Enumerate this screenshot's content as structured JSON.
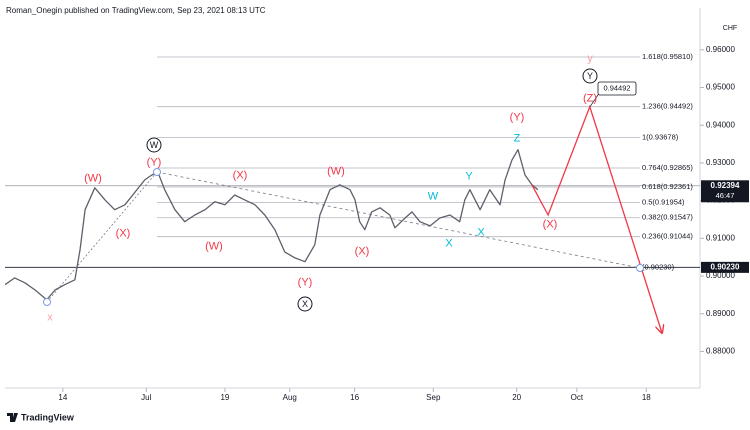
{
  "header": {
    "text": "Roman_Onegin published on TradingView.com, Sep 23, 2021 08:13 UTC"
  },
  "footer": {
    "brand": "TradingView"
  },
  "chart_data": {
    "type": "line",
    "currency": "CHF",
    "x": [
      0.5,
      2.6,
      4.8,
      7.0,
      9.5,
      11.3,
      13.4,
      15.6,
      16.7,
      17.8,
      19.9,
      22.1,
      24.2,
      26.4,
      28.6,
      30.7,
      32.2,
      33.5,
      35.0,
      37.2,
      39.3,
      41.5,
      43.7,
      45.8,
      48.0,
      50.1,
      52.3,
      54.5,
      56.6,
      58.8,
      60.9,
      63.1,
      65.3,
      67.4,
      68.5,
      70.7,
      72.8,
      75.0,
      76.1,
      77.1,
      78.2,
      79.7,
      81.5,
      83.6,
      84.7,
      86.9,
      88.4,
      90.1,
      92.3,
      94.4,
      96.6,
      98.7,
      99.8,
      100.9,
      103.1,
      105.2,
      107.4,
      108.5,
      110.0,
      111.3,
      112.8,
      114.3,
      115.6
    ],
    "series": [
      {
        "color": "#5d606b",
        "values": [
          0.8977,
          0.8995,
          0.8982,
          0.8963,
          0.8937,
          0.8963,
          0.8977,
          0.899,
          0.9069,
          0.9176,
          0.9234,
          0.9202,
          0.9176,
          0.9189,
          0.9223,
          0.9255,
          0.9268,
          0.9276,
          0.9229,
          0.9176,
          0.9144,
          0.9162,
          0.9176,
          0.9197,
          0.9189,
          0.9215,
          0.9202,
          0.9189,
          0.9162,
          0.9123,
          0.9064,
          0.9048,
          0.9038,
          0.9083,
          0.9162,
          0.9229,
          0.9242,
          0.9229,
          0.9202,
          0.9144,
          0.9123,
          0.917,
          0.9181,
          0.9162,
          0.9128,
          0.9154,
          0.917,
          0.9144,
          0.9133,
          0.9154,
          0.9162,
          0.9144,
          0.9202,
          0.9229,
          0.9176,
          0.9229,
          0.9189,
          0.9255,
          0.9308,
          0.9335,
          0.9268,
          0.9242,
          0.9229
        ]
      }
    ],
    "projection": {
      "color": "#f23645",
      "x": [
        114.3,
        117.8,
        126.8,
        142.4
      ],
      "values": [
        0.9242,
        0.9162,
        0.94492,
        0.8849
      ]
    },
    "xlim": [
      0.5,
      150.6
    ],
    "xticks": [
      {
        "value": 13,
        "label": "14"
      },
      {
        "value": 31,
        "label": "Jul"
      },
      {
        "value": 48,
        "label": "19"
      },
      {
        "value": 62,
        "label": "Aug"
      },
      {
        "value": 76,
        "label": "16"
      },
      {
        "value": 93,
        "label": "Sep"
      },
      {
        "value": 111,
        "label": "20"
      },
      {
        "value": 124,
        "label": "Oct"
      },
      {
        "value": 139,
        "label": "18"
      }
    ],
    "ylim": [
      0.8703,
      0.9711
    ],
    "yticks": [
      {
        "value": 0.88,
        "label": "0.88000"
      },
      {
        "value": 0.89,
        "label": "0.89000"
      },
      {
        "value": 0.9,
        "label": "0.90000"
      },
      {
        "value": 0.91,
        "label": "0.91000"
      },
      {
        "value": 0.92,
        "label": "0.92000"
      },
      {
        "value": 0.93,
        "label": "0.93000"
      },
      {
        "value": 0.94,
        "label": "0.94000"
      },
      {
        "value": 0.95,
        "label": "0.95000"
      },
      {
        "value": 0.96,
        "label": "0.96000"
      }
    ],
    "fib_levels": [
      {
        "value": 0.9581,
        "label": "1.618(0.95810)"
      },
      {
        "value": 0.94492,
        "label": "1.236(0.94492)"
      },
      {
        "value": 0.93678,
        "label": "1(0.93678)"
      },
      {
        "value": 0.92865,
        "label": "0.764(0.92865)"
      },
      {
        "value": 0.92361,
        "label": "0.618(0.92361)"
      },
      {
        "value": 0.91954,
        "label": "0.5(0.91954)"
      },
      {
        "value": 0.91547,
        "label": "0.382(0.91547)"
      },
      {
        "value": 0.91044,
        "label": "0.236(0.91044)"
      },
      {
        "value": 0.9023,
        "label": "(0.90230)"
      }
    ],
    "price_tags": [
      {
        "value": 0.92394,
        "label": "0.92394",
        "countdown": "46:47"
      },
      {
        "value": 0.9023,
        "label": "0.90230"
      }
    ],
    "callout": {
      "value": 0.94492,
      "label": "0.94492"
    },
    "annotations": [
      {
        "text": "x",
        "color": "#f7a1a8"
      },
      {
        "text": "(W)",
        "color": "#f23645"
      },
      {
        "text": "(X)",
        "color": "#f23645"
      },
      {
        "text": "(Y)",
        "color": "#f23645"
      },
      {
        "text": "W",
        "color": "#131722",
        "circled": true
      },
      {
        "text": "(X)",
        "color": "#f23645"
      },
      {
        "text": "(W)",
        "color": "#f23645"
      },
      {
        "text": "(Y)",
        "color": "#f23645"
      },
      {
        "text": "X",
        "color": "#131722",
        "circled": true
      },
      {
        "text": "(W)",
        "color": "#f23645"
      },
      {
        "text": "(X)",
        "color": "#f23645"
      },
      {
        "text": "(Y)",
        "color": "#f23645"
      },
      {
        "text": "(Z)",
        "color": "#f23645"
      },
      {
        "text": "Y",
        "color": "#131722",
        "circled": true
      },
      {
        "text": "y",
        "color": "#f7a1a8"
      },
      {
        "text": "(X)",
        "color": "#f23645"
      },
      {
        "text": "W",
        "color": "#00bcd4"
      },
      {
        "text": "X",
        "color": "#00bcd4"
      },
      {
        "text": "Y",
        "color": "#00bcd4"
      },
      {
        "text": "X",
        "color": "#00bcd4"
      },
      {
        "text": "Z",
        "color": "#00bcd4"
      }
    ]
  }
}
